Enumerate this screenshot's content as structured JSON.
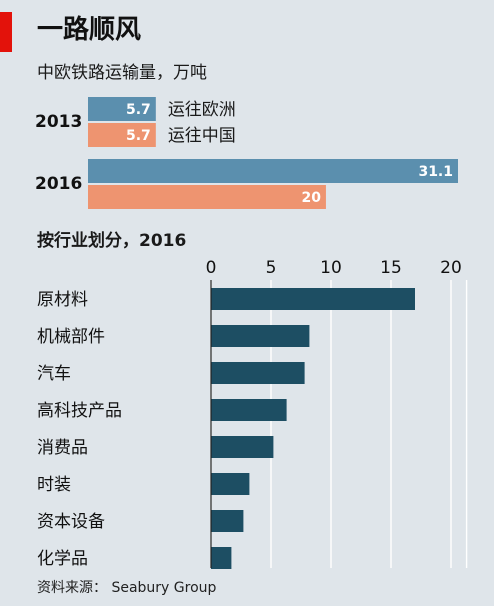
{
  "title": "一路顺风",
  "subtitle": "中欧铁路运输量，万吨",
  "source": "资料来源： Seabury Group",
  "colors": {
    "to_europe": "#5b8fae",
    "to_china": "#ee9470",
    "industry": "#1d4e63",
    "accent": "#e3120b",
    "background": "#dfe5ea"
  },
  "chart_data": [
    {
      "type": "bar",
      "orientation": "horizontal",
      "categories": [
        "2013",
        "2016"
      ],
      "series": [
        {
          "name": "运往欧洲",
          "values": [
            5.7,
            31.1
          ],
          "labels": [
            "5.7",
            "31.1"
          ]
        },
        {
          "name": "运往中国",
          "values": [
            5.7,
            20
          ],
          "labels": [
            "5.7",
            "20"
          ]
        }
      ],
      "legend": "right of 2013 bars"
    },
    {
      "type": "bar",
      "orientation": "horizontal",
      "title": "按行业划分，2016",
      "categories": [
        "原材料",
        "机械部件",
        "汽车",
        "高科技产品",
        "消费品",
        "时装",
        "资本设备",
        "化学品"
      ],
      "values": [
        17,
        8.2,
        7.8,
        6.3,
        5.2,
        3.2,
        2.7,
        1.7
      ],
      "xlim": [
        0,
        20
      ],
      "xticks": [
        "0",
        "5",
        "10",
        "15",
        "20"
      ],
      "grid": true
    }
  ]
}
